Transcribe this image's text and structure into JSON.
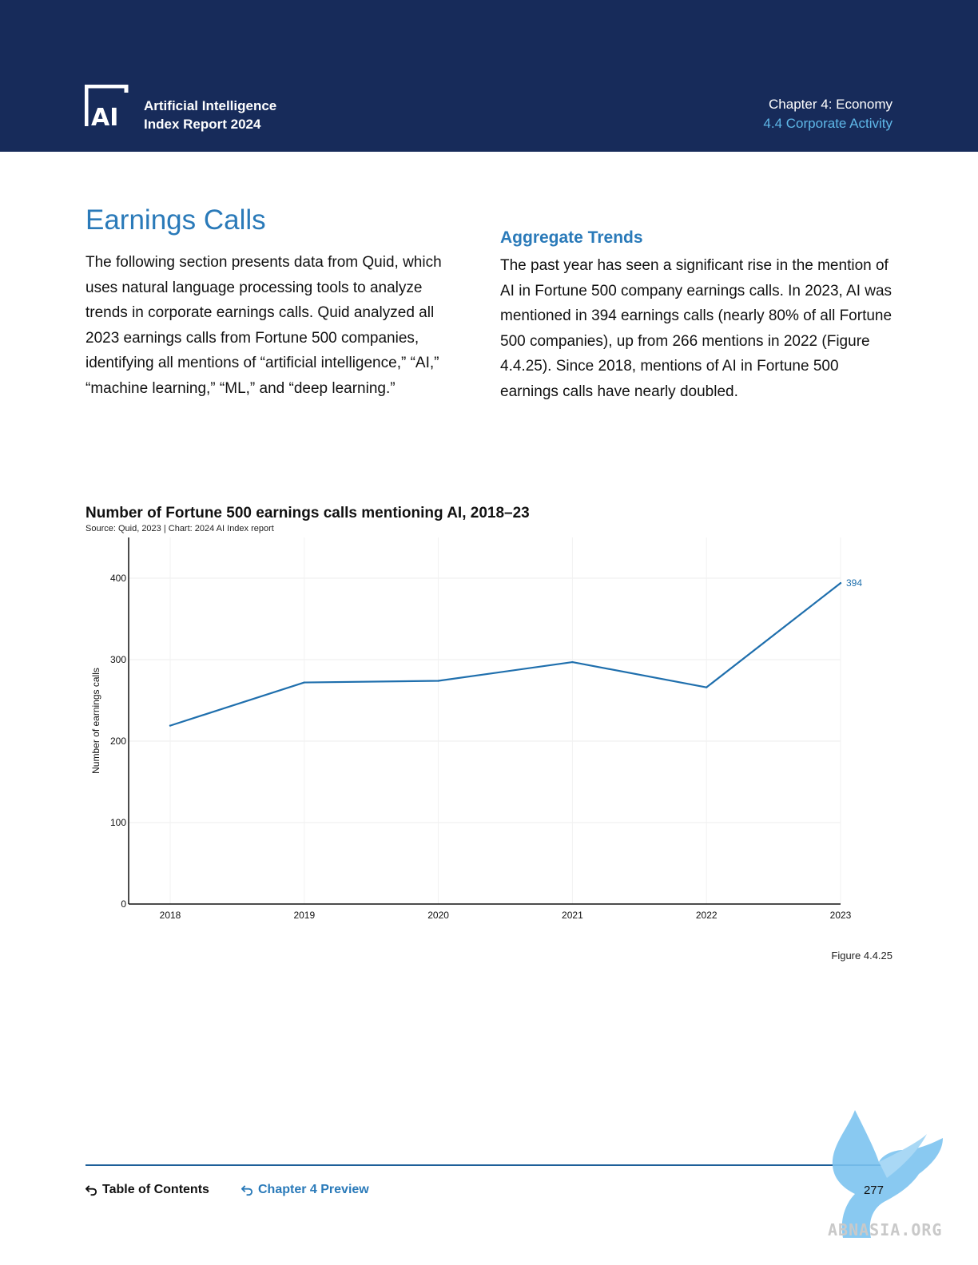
{
  "header": {
    "logo_line1": "Artificial Intelligence",
    "logo_line2": "Index Report 2024",
    "chapter": "Chapter 4: Economy",
    "section": "4.4 Corporate Activity"
  },
  "content": {
    "title": "Earnings Calls",
    "intro": "The following section presents data from Quid, which uses natural language processing tools to analyze trends in corporate earnings calls. Quid analyzed all 2023 earnings calls from Fortune 500 companies, identifying all mentions of “artificial intelligence,” “AI,” “machine learning,” “ML,” and “deep learning.”",
    "subheading": "Aggregate Trends",
    "body": "The past year has seen a significant rise in the mention of AI in Fortune 500 company earnings calls. In 2023, AI was mentioned in 394 earnings calls (nearly 80% of all Fortune 500 companies), up from 266 mentions in 2022 (Figure 4.4.25). Since 2018, mentions of AI in Fortune 500 earnings calls have nearly doubled."
  },
  "chart_data": {
    "type": "line",
    "title": "Number of Fortune 500 earnings calls mentioning AI, 2018–23",
    "source": "Source: Quid, 2023 | Chart: 2024 AI Index report",
    "xlabel": "",
    "ylabel": "Number of earnings calls",
    "x": [
      "2018",
      "2019",
      "2020",
      "2021",
      "2022",
      "2023"
    ],
    "series": [
      {
        "values": [
          219,
          272,
          274,
          297,
          266,
          394
        ]
      }
    ],
    "end_label": "394",
    "ylim": [
      0,
      450
    ],
    "yticks": [
      0,
      100,
      200,
      300,
      400
    ],
    "grid": true,
    "line_color": "#1f6fad"
  },
  "figure_label": "Figure 4.4.25",
  "footer": {
    "toc": "Table of Contents",
    "chapter_preview": "Chapter 4 Preview",
    "page": "277"
  },
  "watermark": "ABNASIA.ORG"
}
